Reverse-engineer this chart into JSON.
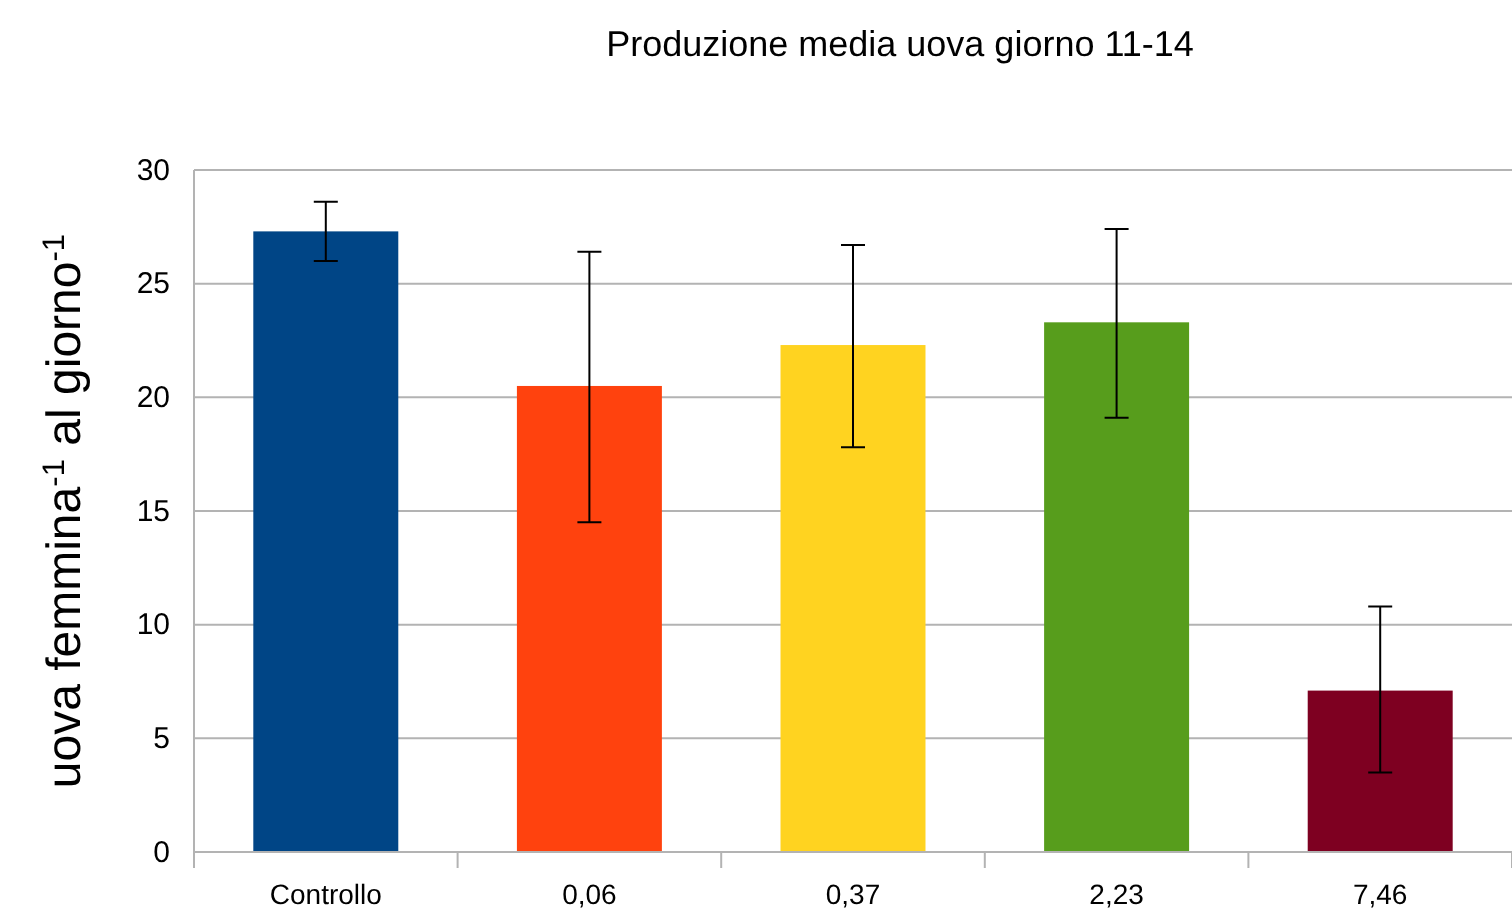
{
  "chart_data": {
    "type": "bar",
    "title": "Produzione media uova giorno 11-14",
    "ylabel": "uova femmina$^{-1}$ al giorno$^{-1}$",
    "categories": [
      "Controllo",
      "0,06",
      "0,37",
      "2,23",
      "7,46"
    ],
    "values": [
      27.3,
      20.5,
      22.3,
      23.3,
      7.1
    ],
    "colors": [
      "#004586",
      "#ff420e",
      "#ffd320",
      "#579d1c",
      "#7e0021"
    ],
    "errors": [
      [
        26.0,
        28.6
      ],
      [
        14.5,
        26.4
      ],
      [
        17.8,
        26.7
      ],
      [
        19.1,
        27.4
      ],
      [
        3.5,
        10.8
      ]
    ],
    "ylim": [
      0,
      30
    ],
    "yticks": [
      0,
      5,
      10,
      15,
      20,
      25,
      30
    ],
    "grid": "y"
  }
}
